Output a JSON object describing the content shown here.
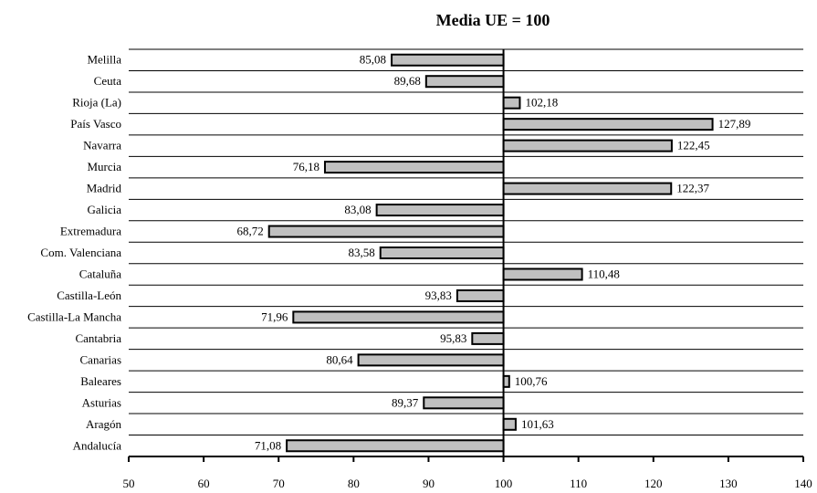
{
  "chart_data": {
    "type": "bar",
    "orientation": "horizontal",
    "title": "Media UE  = 100",
    "xlabel": "",
    "ylabel": "",
    "baseline": 100,
    "xlim": [
      50,
      140
    ],
    "x_ticks": [
      50,
      60,
      70,
      80,
      90,
      100,
      110,
      120,
      130,
      140
    ],
    "grid": "horizontal",
    "legend": "none",
    "bar_color": "#c0c0c0",
    "categories": [
      "Melilla",
      "Ceuta",
      "Rioja (La)",
      "País Vasco",
      "Navarra",
      "Murcia",
      "Madrid",
      "Galicia",
      "Extremadura",
      "Com. Valenciana",
      "Cataluña",
      "Castilla-León",
      "Castilla-La Mancha",
      "Cantabria",
      "Canarias",
      "Baleares",
      "Asturias",
      "Aragón",
      "Andalucía"
    ],
    "values": [
      85.08,
      89.68,
      102.18,
      127.89,
      122.45,
      76.18,
      122.37,
      83.08,
      68.72,
      83.58,
      110.48,
      93.83,
      71.96,
      95.83,
      80.64,
      100.76,
      89.37,
      101.63,
      71.08
    ],
    "value_labels": [
      "85,08",
      "89,68",
      "102,18",
      "127,89",
      "122,45",
      "76,18",
      "122,37",
      "83,08",
      "68,72",
      "83,58",
      "110,48",
      "93,83",
      "71,96",
      "95,83",
      "80,64",
      "100,76",
      "89,37",
      "101,63",
      "71,08"
    ]
  }
}
